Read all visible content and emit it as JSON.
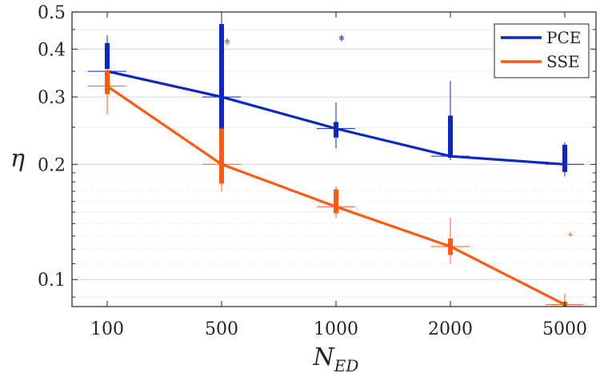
{
  "chart_data": {
    "type": "line",
    "categories": [
      "100",
      "500",
      "1000",
      "2000",
      "5000"
    ],
    "xlabel": "N",
    "xlabel_sub": "ED",
    "ylabel": "η",
    "yscale": "log",
    "ylim": [
      0.085,
      0.5
    ],
    "yticks": [
      0.1,
      0.2,
      0.3,
      0.4,
      0.5
    ],
    "ytick_labels": [
      "0.1",
      "0.2",
      "0.3",
      "0.4",
      "0.5"
    ],
    "grid": true,
    "legend_position": "top-right",
    "series": [
      {
        "name": "PCE",
        "color": "#0b27c4",
        "values": [
          0.35,
          0.3,
          0.248,
          0.21,
          0.2
        ],
        "boxes": [
          {
            "q1": 0.355,
            "q3": 0.415,
            "wlo": 0.34,
            "whi": 0.435,
            "outliers": []
          },
          {
            "q1": 0.245,
            "q3": 0.465,
            "wlo": 0.24,
            "whi": 0.5,
            "outliers": [
              0.42
            ]
          },
          {
            "q1": 0.235,
            "q3": 0.258,
            "wlo": 0.22,
            "whi": 0.29,
            "outliers": [
              0.425,
              0.43
            ]
          },
          {
            "q1": 0.208,
            "q3": 0.268,
            "wlo": 0.205,
            "whi": 0.33,
            "outliers": []
          },
          {
            "q1": 0.191,
            "q3": 0.225,
            "wlo": 0.186,
            "whi": 0.228,
            "outliers": []
          }
        ]
      },
      {
        "name": "SSE",
        "color": "#ff5a0f",
        "values": [
          0.32,
          0.2,
          0.155,
          0.122,
          0.086
        ],
        "boxes": [
          {
            "q1": 0.305,
            "q3": 0.352,
            "wlo": 0.27,
            "whi": 0.355,
            "outliers": []
          },
          {
            "q1": 0.178,
            "q3": 0.248,
            "wlo": 0.17,
            "whi": 0.25,
            "outliers": [
              0.415
            ]
          },
          {
            "q1": 0.149,
            "q3": 0.172,
            "wlo": 0.145,
            "whi": 0.175,
            "outliers": []
          },
          {
            "q1": 0.116,
            "q3": 0.128,
            "wlo": 0.11,
            "whi": 0.145,
            "outliers": []
          },
          {
            "q1": 0.085,
            "q3": 0.0875,
            "wlo": 0.085,
            "whi": 0.092,
            "outliers": [
              0.131
            ]
          }
        ]
      }
    ]
  }
}
